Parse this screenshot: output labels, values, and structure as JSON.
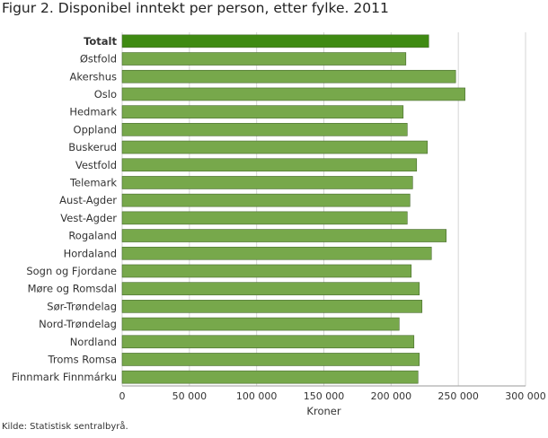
{
  "title": "Figur 2. Disponibel inntekt per person, etter fylke. 2011",
  "source": "Kilde: Statistisk sentralbyrå.",
  "colors": {
    "bar": "#77a84b",
    "bar_highlight": "#3f8a12",
    "bar_stroke": "#466a2c",
    "grid": "#d5d5d5",
    "axis_text": "#333333"
  },
  "chart_data": {
    "type": "bar",
    "orientation": "horizontal",
    "title": "Figur 2. Disponibel inntekt per person, etter fylke. 2011",
    "xlabel": "Kroner",
    "ylabel": "",
    "xlim": [
      0,
      300000
    ],
    "xticks": [
      0,
      50000,
      100000,
      150000,
      200000,
      250000,
      300000
    ],
    "xtick_labels": [
      "0",
      "50 000",
      "100 000",
      "150 000",
      "200 000",
      "250 000",
      "300 000"
    ],
    "grid": true,
    "highlight_category": "Totalt",
    "categories": [
      "Totalt",
      "Østfold",
      "Akershus",
      "Oslo",
      "Hedmark",
      "Oppland",
      "Buskerud",
      "Vestfold",
      "Telemark",
      "Aust-Agder",
      "Vest-Agder",
      "Rogaland",
      "Hordaland",
      "Sogn og Fjordane",
      "Møre og Romsdal",
      "Sør-Trøndelag",
      "Nord-Trøndelag",
      "Nordland",
      "Troms Romsa",
      "Finnmark Finnmárku"
    ],
    "values": [
      228000,
      211000,
      248000,
      255000,
      209000,
      212000,
      227000,
      219000,
      216000,
      214000,
      212000,
      241000,
      230000,
      215000,
      221000,
      223000,
      206000,
      217000,
      221000,
      220000
    ]
  }
}
